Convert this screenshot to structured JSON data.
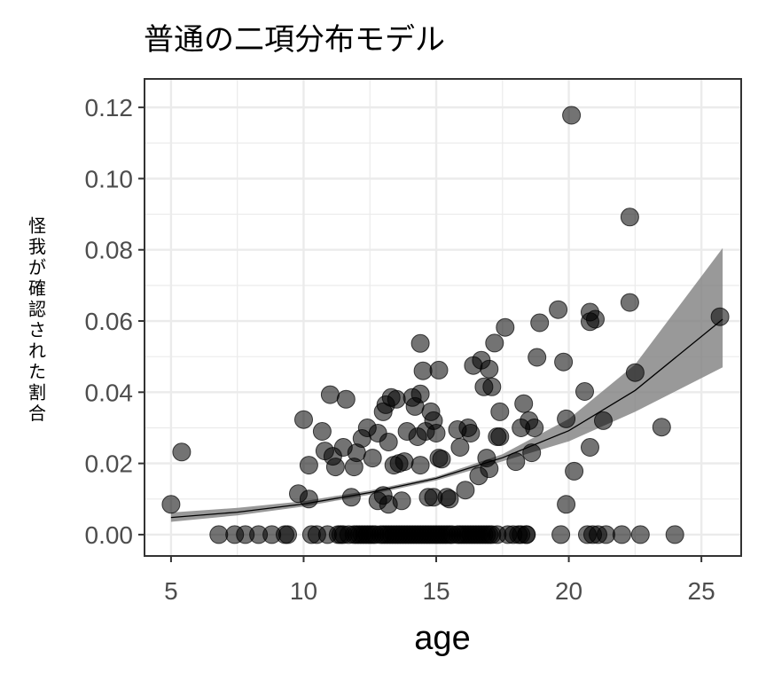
{
  "chart_data": {
    "type": "scatter",
    "title": "普通の二項分布モデル",
    "xlabel": "age",
    "ylabel": "怪我が確認された割合",
    "xlim": [
      4.0,
      26.5
    ],
    "ylim": [
      -0.006,
      0.128
    ],
    "xticks": [
      "5",
      "10",
      "15",
      "20",
      "25"
    ],
    "yticks": [
      "0.00",
      "0.02",
      "0.04",
      "0.06",
      "0.08",
      "0.10",
      "0.12"
    ],
    "grid": true,
    "colors": {
      "points": "#000000",
      "band": "#7f7f7f",
      "line": "#000000",
      "grid": "#ebebeb",
      "panel_border": "#333333"
    },
    "points": [
      [
        5.0,
        0.0085
      ],
      [
        5.4,
        0.0232
      ],
      [
        6.8,
        0.0
      ],
      [
        7.4,
        0.0
      ],
      [
        7.8,
        0.0
      ],
      [
        8.3,
        0.0
      ],
      [
        8.8,
        0.0
      ],
      [
        9.3,
        0.0
      ],
      [
        9.4,
        0.0
      ],
      [
        9.8,
        0.0115
      ],
      [
        10.0,
        0.0323
      ],
      [
        10.2,
        0.01
      ],
      [
        10.2,
        0.0195
      ],
      [
        10.3,
        0.0
      ],
      [
        10.5,
        0.0
      ],
      [
        10.7,
        0.029
      ],
      [
        10.8,
        0.0235
      ],
      [
        10.9,
        0.0
      ],
      [
        11.0,
        0.0393
      ],
      [
        11.1,
        0.022
      ],
      [
        11.2,
        0.019
      ],
      [
        11.3,
        0.0
      ],
      [
        11.4,
        0.0
      ],
      [
        11.5,
        0.0
      ],
      [
        11.5,
        0.0245
      ],
      [
        11.6,
        0.038
      ],
      [
        11.7,
        0.0
      ],
      [
        11.8,
        0.0105
      ],
      [
        11.9,
        0.0
      ],
      [
        11.9,
        0.019
      ],
      [
        12.0,
        0.0
      ],
      [
        12.0,
        0.023
      ],
      [
        12.1,
        0.0
      ],
      [
        12.2,
        0.0
      ],
      [
        12.2,
        0.027
      ],
      [
        12.3,
        0.0
      ],
      [
        12.4,
        0.0
      ],
      [
        12.4,
        0.03
      ],
      [
        12.5,
        0.0
      ],
      [
        12.6,
        0.0
      ],
      [
        12.6,
        0.0215
      ],
      [
        12.7,
        0.0
      ],
      [
        12.8,
        0.0095
      ],
      [
        12.8,
        0.0285
      ],
      [
        12.9,
        0.0
      ],
      [
        13.0,
        0.0
      ],
      [
        13.0,
        0.011
      ],
      [
        13.0,
        0.0345
      ],
      [
        13.1,
        0.0
      ],
      [
        13.1,
        0.0365
      ],
      [
        13.2,
        0.0
      ],
      [
        13.2,
        0.0085
      ],
      [
        13.2,
        0.026
      ],
      [
        13.3,
        0.0385
      ],
      [
        13.3,
        0.0
      ],
      [
        13.4,
        0.0
      ],
      [
        13.4,
        0.0195
      ],
      [
        13.5,
        0.0
      ],
      [
        13.5,
        0.038
      ],
      [
        13.6,
        0.0
      ],
      [
        13.6,
        0.02
      ],
      [
        13.7,
        0.0
      ],
      [
        13.7,
        0.0095
      ],
      [
        13.8,
        0.0
      ],
      [
        13.8,
        0.0205
      ],
      [
        13.9,
        0.0
      ],
      [
        13.9,
        0.029
      ],
      [
        14.0,
        0.0
      ],
      [
        14.1,
        0.0
      ],
      [
        14.1,
        0.0385
      ],
      [
        14.2,
        0.0
      ],
      [
        14.2,
        0.036
      ],
      [
        14.3,
        0.0
      ],
      [
        14.3,
        0.0275
      ],
      [
        14.4,
        0.0
      ],
      [
        14.4,
        0.0195
      ],
      [
        14.4,
        0.0395
      ],
      [
        14.4,
        0.0537
      ],
      [
        14.5,
        0.0
      ],
      [
        14.5,
        0.046
      ],
      [
        14.6,
        0.0
      ],
      [
        14.6,
        0.029
      ],
      [
        14.7,
        0.0
      ],
      [
        14.7,
        0.0105
      ],
      [
        14.8,
        0.0
      ],
      [
        14.8,
        0.0345
      ],
      [
        14.9,
        0.0
      ],
      [
        14.9,
        0.0105
      ],
      [
        14.9,
        0.032
      ],
      [
        15.0,
        0.0
      ],
      [
        15.0,
        0.0285
      ],
      [
        15.1,
        0.0
      ],
      [
        15.1,
        0.0215
      ],
      [
        15.1,
        0.0462
      ],
      [
        15.2,
        0.0
      ],
      [
        15.2,
        0.0212
      ],
      [
        15.3,
        0.0
      ],
      [
        15.4,
        0.0
      ],
      [
        15.4,
        0.0105
      ],
      [
        15.5,
        0.0
      ],
      [
        15.5,
        0.01
      ],
      [
        15.6,
        0.0
      ],
      [
        15.8,
        0.0
      ],
      [
        15.8,
        0.0295
      ],
      [
        15.9,
        0.0
      ],
      [
        15.9,
        0.0245
      ],
      [
        16.0,
        0.0
      ],
      [
        16.1,
        0.0
      ],
      [
        16.1,
        0.0125
      ],
      [
        16.2,
        0.0
      ],
      [
        16.2,
        0.03
      ],
      [
        16.3,
        0.0
      ],
      [
        16.3,
        0.0285
      ],
      [
        16.4,
        0.0
      ],
      [
        16.4,
        0.0475
      ],
      [
        16.5,
        0.0
      ],
      [
        16.6,
        0.0
      ],
      [
        16.6,
        0.0165
      ],
      [
        16.7,
        0.0
      ],
      [
        16.7,
        0.049
      ],
      [
        16.8,
        0.0
      ],
      [
        16.8,
        0.0415
      ],
      [
        16.9,
        0.0
      ],
      [
        16.9,
        0.0215
      ],
      [
        17.0,
        0.0
      ],
      [
        17.0,
        0.0185
      ],
      [
        17.0,
        0.0465
      ],
      [
        17.1,
        0.0
      ],
      [
        17.1,
        0.0415
      ],
      [
        17.2,
        0.0538
      ],
      [
        17.3,
        0.0
      ],
      [
        17.3,
        0.0275
      ],
      [
        17.4,
        0.0275
      ],
      [
        17.4,
        0.0345
      ],
      [
        17.6,
        0.0582
      ],
      [
        17.7,
        0.0
      ],
      [
        17.9,
        0.0
      ],
      [
        18.0,
        0.0205
      ],
      [
        18.1,
        0.0
      ],
      [
        18.2,
        0.03
      ],
      [
        18.2,
        0.0
      ],
      [
        18.3,
        0.0368
      ],
      [
        18.4,
        0.0
      ],
      [
        18.4,
        0.0
      ],
      [
        18.5,
        0.032
      ],
      [
        18.6,
        0.023
      ],
      [
        18.7,
        0.03
      ],
      [
        18.8,
        0.0498
      ],
      [
        18.9,
        0.0595
      ],
      [
        19.6,
        0.0632
      ],
      [
        19.7,
        0.0
      ],
      [
        19.8,
        0.0485
      ],
      [
        19.9,
        0.0085
      ],
      [
        19.9,
        0.0325
      ],
      [
        20.1,
        0.1178
      ],
      [
        20.2,
        0.0178
      ],
      [
        20.6,
        0.0402
      ],
      [
        20.7,
        0.0
      ],
      [
        20.8,
        0.0245
      ],
      [
        20.8,
        0.0598
      ],
      [
        20.8,
        0.0625
      ],
      [
        20.9,
        0.0
      ],
      [
        21.0,
        0.0605
      ],
      [
        21.1,
        0.0
      ],
      [
        21.3,
        0.032
      ],
      [
        21.4,
        0.0
      ],
      [
        22.0,
        0.0
      ],
      [
        22.3,
        0.0892
      ],
      [
        22.3,
        0.0652
      ],
      [
        22.5,
        0.0455
      ],
      [
        22.7,
        0.0
      ],
      [
        23.5,
        0.0302
      ],
      [
        24.0,
        0.0
      ],
      [
        25.7,
        0.0612
      ]
    ],
    "fit_line": [
      [
        5.0,
        0.0048
      ],
      [
        7.5,
        0.0063
      ],
      [
        10.0,
        0.0086
      ],
      [
        12.5,
        0.0118
      ],
      [
        15.0,
        0.0158
      ],
      [
        17.5,
        0.0216
      ],
      [
        20.0,
        0.0292
      ],
      [
        22.5,
        0.0405
      ],
      [
        25.8,
        0.0605
      ]
    ],
    "band_upper": [
      [
        5.0,
        0.0062
      ],
      [
        7.5,
        0.0075
      ],
      [
        10.0,
        0.0094
      ],
      [
        12.5,
        0.0124
      ],
      [
        15.0,
        0.0163
      ],
      [
        17.5,
        0.0226
      ],
      [
        20.0,
        0.0325
      ],
      [
        22.5,
        0.0478
      ],
      [
        25.8,
        0.0805
      ]
    ],
    "band_lower": [
      [
        5.0,
        0.0036
      ],
      [
        7.5,
        0.0054
      ],
      [
        10.0,
        0.0079
      ],
      [
        12.5,
        0.0112
      ],
      [
        15.0,
        0.0152
      ],
      [
        17.5,
        0.0206
      ],
      [
        20.0,
        0.0262
      ],
      [
        22.5,
        0.0345
      ],
      [
        25.8,
        0.047
      ]
    ]
  }
}
